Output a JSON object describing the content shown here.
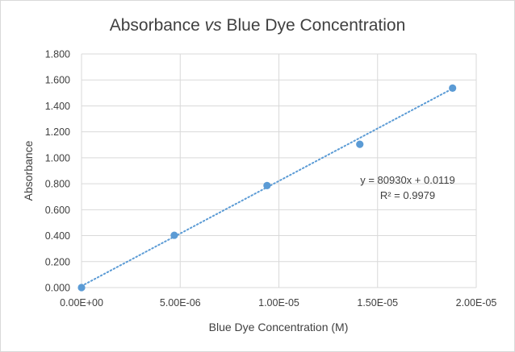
{
  "chart_data": {
    "type": "scatter",
    "title_main": "Absorbance ",
    "title_italic": "vs",
    "title_rest": " Blue Dye Concentration",
    "xlabel": "Blue Dye Concentration (M)",
    "ylabel": "Absorbance",
    "xlim": [
      0,
      2e-05
    ],
    "ylim": [
      0,
      1.8
    ],
    "x_ticks": [
      0,
      5e-06,
      1e-05,
      1.5e-05,
      2e-05
    ],
    "x_tick_labels": [
      "0.00E+00",
      "5.00E-06",
      "1.00E-05",
      "1.50E-05",
      "2.00E-05"
    ],
    "y_ticks": [
      0,
      0.2,
      0.4,
      0.6,
      0.8,
      1.0,
      1.2,
      1.4,
      1.6,
      1.8
    ],
    "y_tick_labels": [
      "0.000",
      "0.200",
      "0.400",
      "0.600",
      "0.800",
      "1.000",
      "1.200",
      "1.400",
      "1.600",
      "1.800"
    ],
    "grid": true,
    "series": [
      {
        "name": "Absorbance",
        "color": "#5b9bd5",
        "points": [
          {
            "x": 0,
            "y": 0.0
          },
          {
            "x": 4.7e-06,
            "y": 0.403
          },
          {
            "x": 9.4e-06,
            "y": 0.786
          },
          {
            "x": 1.41e-05,
            "y": 1.104
          },
          {
            "x": 1.88e-05,
            "y": 1.537
          }
        ]
      }
    ],
    "trendline": {
      "slope": 80930,
      "intercept": 0.0119,
      "x_range": [
        0,
        1.88e-05
      ],
      "color": "#5b9bd5",
      "equation_label": "y = 80930x + 0.0119",
      "r2_label": "R² = 0.9979"
    }
  }
}
